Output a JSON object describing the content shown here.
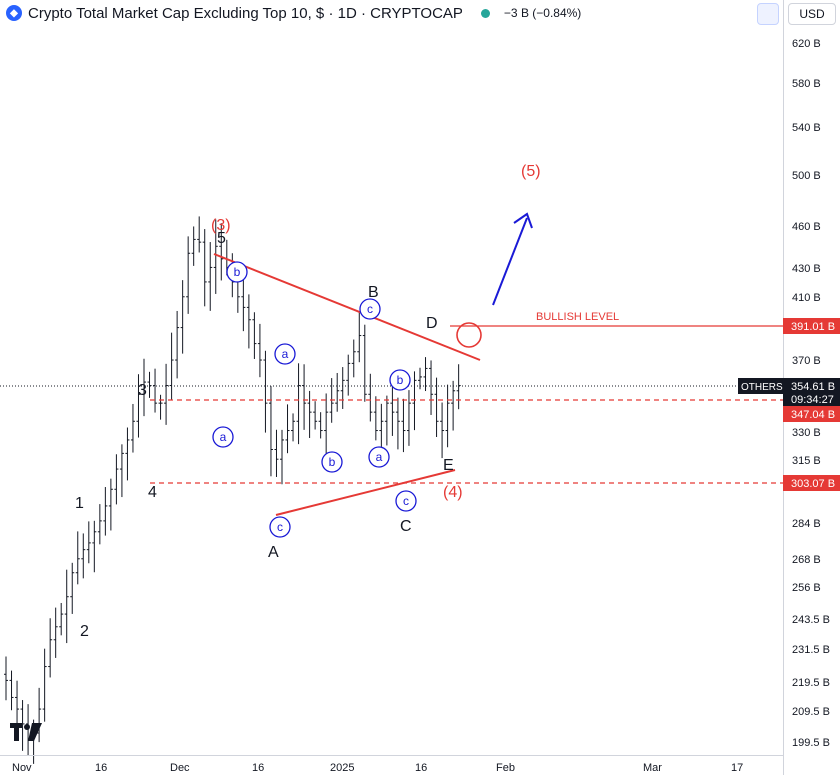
{
  "header": {
    "title": "Crypto Total Market Cap Excluding Top 10, $ · 1D · CRYPTOCAP",
    "change": "−3 B (−0.84%)",
    "currency": "USD"
  },
  "colors": {
    "accent_red": "#e53935",
    "wave_blue": "#1a1ad6",
    "status_green": "#26a69a"
  },
  "chart_data": {
    "type": "bar",
    "style": "ohlc-bars",
    "symbol_label": "OTHERS",
    "last_price_label": "354.61 B",
    "countdown": "09:34:27",
    "y_ticks": [
      "620 B",
      "580 B",
      "540 B",
      "500 B",
      "460 B",
      "430 B",
      "410 B",
      "370 B",
      "330 B",
      "315 B",
      "284 B",
      "268 B",
      "256 B",
      "243.5 B",
      "231.5 B",
      "219.5 B",
      "209.5 B",
      "199.5 B"
    ],
    "x_ticks": [
      "Nov",
      "16",
      "Dec",
      "16",
      "2025",
      "16",
      "Feb",
      "Mar",
      "17"
    ],
    "price_lines": [
      {
        "label": "391.01 B",
        "value": 391.01,
        "style": "solid"
      },
      {
        "label": "347.04 B",
        "value": 347.04,
        "style": "dashed"
      },
      {
        "label": "303.07 B",
        "value": 303.07,
        "style": "dashed"
      }
    ],
    "annotations": {
      "bullish_level": "BULLISH LEVEL",
      "wave_major": [
        "(3)",
        "(4)",
        "(5)"
      ],
      "wave_minor": [
        "1",
        "2",
        "3",
        "4",
        "5"
      ],
      "triangle": [
        "A",
        "B",
        "C",
        "D",
        "E"
      ],
      "sub_wave_circles": [
        "a",
        "b",
        "c",
        "a",
        "b",
        "c",
        "a",
        "b",
        "c"
      ]
    },
    "closes": [
      220,
      214,
      210,
      205,
      200,
      202,
      210,
      225,
      235,
      240,
      245,
      252,
      262,
      268,
      272,
      275,
      280,
      285,
      292,
      300,
      310,
      318,
      325,
      335,
      350,
      357,
      355,
      345,
      345,
      355,
      370,
      390,
      410,
      440,
      450,
      448,
      420,
      430,
      445,
      436,
      430,
      420,
      410,
      403,
      395,
      380,
      370,
      345,
      320,
      315,
      325,
      330,
      335,
      355,
      345,
      340,
      335,
      330,
      340,
      345,
      352,
      358,
      368,
      375,
      385,
      350,
      340,
      330,
      335,
      345,
      340,
      335,
      330,
      345,
      358,
      360,
      365,
      350,
      335,
      330,
      345,
      352,
      355
    ]
  }
}
